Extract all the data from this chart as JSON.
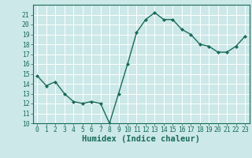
{
  "x": [
    0,
    1,
    2,
    3,
    4,
    5,
    6,
    7,
    8,
    9,
    10,
    11,
    12,
    13,
    14,
    15,
    16,
    17,
    18,
    19,
    20,
    21,
    22,
    23
  ],
  "y": [
    14.8,
    13.8,
    14.2,
    13.0,
    12.2,
    12.0,
    12.2,
    12.0,
    10.0,
    13.0,
    16.0,
    19.2,
    20.5,
    21.2,
    20.5,
    20.5,
    19.5,
    19.0,
    18.0,
    17.8,
    17.2,
    17.2,
    17.8,
    18.8
  ],
  "line_color": "#1a6b5a",
  "marker": "D",
  "marker_size": 2.0,
  "linewidth": 1.0,
  "bg_color": "#cce8e8",
  "grid_color": "#ffffff",
  "xlabel": "Humidex (Indice chaleur)",
  "ylim": [
    10,
    22
  ],
  "xlim": [
    -0.5,
    23.5
  ],
  "yticks": [
    10,
    11,
    12,
    13,
    14,
    15,
    16,
    17,
    18,
    19,
    20,
    21
  ],
  "xticks": [
    0,
    1,
    2,
    3,
    4,
    5,
    6,
    7,
    8,
    9,
    10,
    11,
    12,
    13,
    14,
    15,
    16,
    17,
    18,
    19,
    20,
    21,
    22,
    23
  ],
  "xlabel_fontsize": 7.5,
  "tick_fontsize": 5.8,
  "tick_color": "#1a6b5a",
  "spine_color": "#1a6b5a"
}
